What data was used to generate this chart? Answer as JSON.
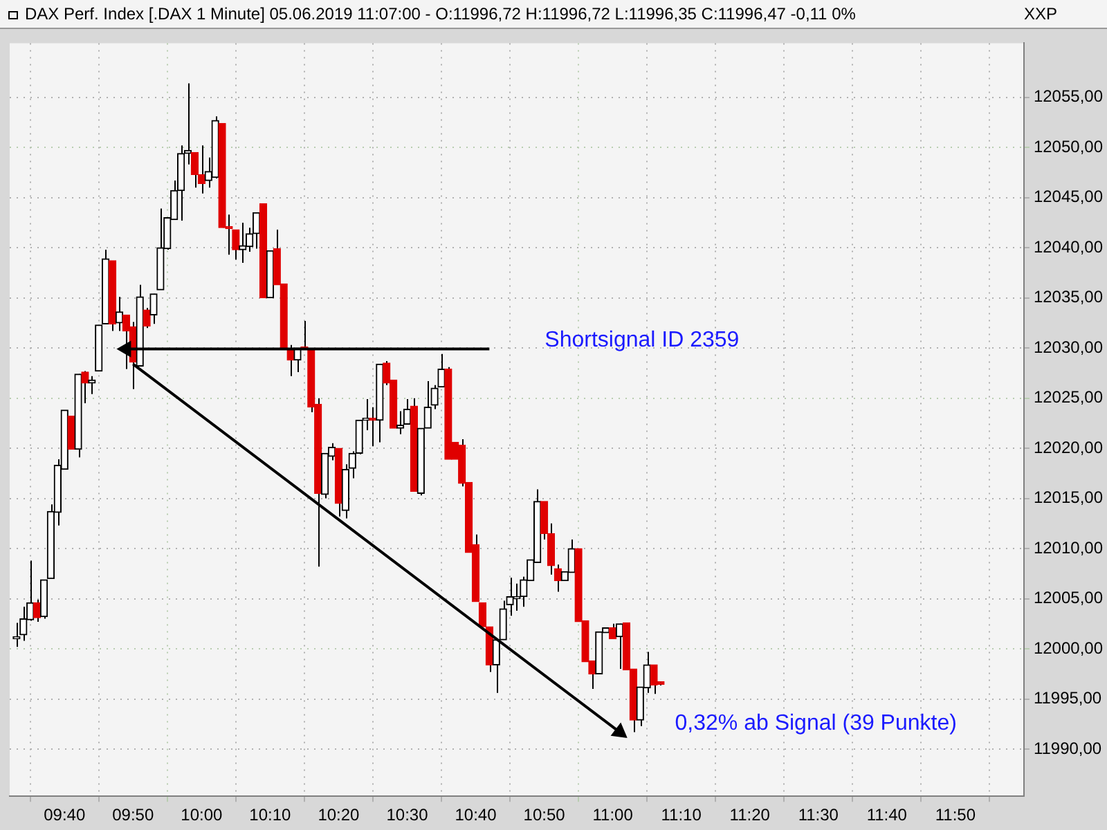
{
  "chart_data": {
    "type": "candlestick",
    "title": "DAX Perf. Index [.DAX  1 Minute] 05.06.2019 11:07:00 - O:11996,72 H:11996,72 L:11996,35 C:11996,47 -0,11 0%",
    "x": [
      "2019-06-05T09:33",
      "2019-06-05T09:34",
      "2019-06-05T09:35",
      "2019-06-05T09:36",
      "2019-06-05T09:37",
      "2019-06-05T09:38",
      "2019-06-05T09:39",
      "2019-06-05T09:40",
      "2019-06-05T09:41",
      "2019-06-05T09:42",
      "2019-06-05T09:43",
      "2019-06-05T09:44",
      "2019-06-05T09:45",
      "2019-06-05T09:46",
      "2019-06-05T09:47",
      "2019-06-05T09:48",
      "2019-06-05T09:49",
      "2019-06-05T09:50",
      "2019-06-05T09:51",
      "2019-06-05T09:52",
      "2019-06-05T09:53",
      "2019-06-05T09:54",
      "2019-06-05T09:55",
      "2019-06-05T09:56",
      "2019-06-05T09:57",
      "2019-06-05T09:58",
      "2019-06-05T09:59",
      "2019-06-05T10:00",
      "2019-06-05T10:01",
      "2019-06-05T10:02",
      "2019-06-05T10:03",
      "2019-06-05T10:04",
      "2019-06-05T10:05",
      "2019-06-05T10:06",
      "2019-06-05T10:07",
      "2019-06-05T10:08",
      "2019-06-05T10:09",
      "2019-06-05T10:10",
      "2019-06-05T10:11",
      "2019-06-05T10:12",
      "2019-06-05T10:13",
      "2019-06-05T10:14",
      "2019-06-05T10:15",
      "2019-06-05T10:16",
      "2019-06-05T10:17",
      "2019-06-05T10:18",
      "2019-06-05T10:19",
      "2019-06-05T10:20",
      "2019-06-05T10:21",
      "2019-06-05T10:22",
      "2019-06-05T10:23",
      "2019-06-05T10:24",
      "2019-06-05T10:25",
      "2019-06-05T10:26",
      "2019-06-05T10:27",
      "2019-06-05T10:28",
      "2019-06-05T10:29",
      "2019-06-05T10:30",
      "2019-06-05T10:31",
      "2019-06-05T10:32",
      "2019-06-05T10:33",
      "2019-06-05T10:34",
      "2019-06-05T10:35",
      "2019-06-05T10:36",
      "2019-06-05T10:37",
      "2019-06-05T10:38",
      "2019-06-05T10:39",
      "2019-06-05T10:40",
      "2019-06-05T10:41",
      "2019-06-05T10:42",
      "2019-06-05T10:43",
      "2019-06-05T10:44",
      "2019-06-05T10:45",
      "2019-06-05T10:46",
      "2019-06-05T10:47",
      "2019-06-05T10:48",
      "2019-06-05T10:49",
      "2019-06-05T10:50",
      "2019-06-05T10:51",
      "2019-06-05T10:52",
      "2019-06-05T10:53",
      "2019-06-05T10:54",
      "2019-06-05T10:55",
      "2019-06-05T10:56",
      "2019-06-05T10:57",
      "2019-06-05T10:58",
      "2019-06-05T10:59",
      "2019-06-05T11:00",
      "2019-06-05T11:01",
      "2019-06-05T11:02",
      "2019-06-05T11:03",
      "2019-06-05T11:04",
      "2019-06-05T11:05",
      "2019-06-05T11:06",
      "2019-06-05T11:07"
    ],
    "ohlc": [
      [
        12001.0,
        12002.6,
        12000.2,
        12001.2
      ],
      [
        12001.4,
        12004.2,
        12000.8,
        12003.0
      ],
      [
        12002.9,
        12008.8,
        12002.8,
        12004.6
      ],
      [
        12004.6,
        12004.9,
        12002.7,
        12003.1
      ],
      [
        12003.2,
        12006.9,
        12003.0,
        12006.9
      ],
      [
        12007.0,
        12014.4,
        12007.0,
        12013.7
      ],
      [
        12013.6,
        12018.9,
        12012.3,
        12018.3
      ],
      [
        12017.9,
        12023.8,
        12017.9,
        12023.8
      ],
      [
        12023.2,
        12023.2,
        12019.9,
        12019.9
      ],
      [
        12019.9,
        12027.4,
        12019.1,
        12027.4
      ],
      [
        12027.6,
        12027.7,
        12024.5,
        12026.5
      ],
      [
        12026.5,
        12027.2,
        12025.4,
        12026.8
      ],
      [
        12027.7,
        12032.3,
        12027.7,
        12032.3
      ],
      [
        12032.4,
        12039.8,
        12032.4,
        12038.9
      ],
      [
        12038.7,
        12038.7,
        12031.7,
        12032.4
      ],
      [
        12032.5,
        12035.1,
        12031.7,
        12033.6
      ],
      [
        12033.3,
        12033.3,
        12027.9,
        12031.7
      ],
      [
        12032.1,
        12032.6,
        12025.9,
        12028.6
      ],
      [
        12028.2,
        12036.3,
        12028.2,
        12035.1
      ],
      [
        12033.8,
        12034.0,
        12032.0,
        12032.2
      ],
      [
        12033.3,
        12035.4,
        12032.4,
        12035.4
      ],
      [
        12035.8,
        12043.9,
        12035.8,
        12040.0
      ],
      [
        12039.9,
        12043.0,
        12039.8,
        12043.0
      ],
      [
        12042.8,
        12046.7,
        12042.8,
        12045.7
      ],
      [
        12045.7,
        12050.2,
        12042.7,
        12049.4
      ],
      [
        12049.4,
        12056.4,
        12048.3,
        12049.7
      ],
      [
        12049.5,
        12049.5,
        12046.0,
        12047.3
      ],
      [
        12047.3,
        12050.2,
        12045.4,
        12046.4
      ],
      [
        12046.7,
        12049.0,
        12046.0,
        12047.6
      ],
      [
        12047.0,
        12053.1,
        12046.9,
        12052.7
      ],
      [
        12052.4,
        12052.4,
        12042.0,
        12042.0
      ],
      [
        12042.1,
        12043.3,
        12039.3,
        12041.9
      ],
      [
        12041.8,
        12041.8,
        12038.8,
        12039.8
      ],
      [
        12039.8,
        12042.5,
        12038.5,
        12040.2
      ],
      [
        12040.1,
        12042.0,
        12039.6,
        12041.4
      ],
      [
        12041.4,
        12043.5,
        12039.9,
        12043.5
      ],
      [
        12044.4,
        12044.4,
        12035.0,
        12035.0
      ],
      [
        12035.0,
        12039.7,
        12035.0,
        12039.7
      ],
      [
        12039.9,
        12041.8,
        12036.3,
        12036.3
      ],
      [
        12036.4,
        12036.4,
        12029.9,
        12029.9
      ],
      [
        12029.9,
        12030.3,
        12027.2,
        12028.8
      ],
      [
        12028.8,
        12030.0,
        12027.6,
        12030.0
      ],
      [
        12030.1,
        12032.7,
        12029.9,
        12029.9
      ],
      [
        12029.9,
        12029.9,
        12023.6,
        12024.1
      ],
      [
        12024.4,
        12025.0,
        12008.2,
        12015.5
      ],
      [
        12015.4,
        12019.5,
        12015.0,
        12019.5
      ],
      [
        12019.2,
        12020.5,
        12018.8,
        12020.1
      ],
      [
        12020.0,
        12020.0,
        12013.2,
        12014.5
      ],
      [
        12013.8,
        12018.4,
        12013.0,
        12017.9
      ],
      [
        12018.0,
        12019.7,
        12017.0,
        12019.5
      ],
      [
        12019.5,
        12022.8,
        12019.4,
        12022.8
      ],
      [
        12022.8,
        12024.9,
        12021.8,
        12023.0
      ],
      [
        12023.0,
        12024.1,
        12020.2,
        12022.8
      ],
      [
        12022.8,
        12028.4,
        12020.6,
        12028.4
      ],
      [
        12028.5,
        12028.7,
        12026.3,
        12026.5
      ],
      [
        12026.8,
        12026.8,
        12022.0,
        12022.0
      ],
      [
        12022.0,
        12023.7,
        12021.4,
        12022.3
      ],
      [
        12022.4,
        12024.9,
        12022.4,
        12023.9
      ],
      [
        12024.2,
        12025.0,
        12015.7,
        12015.7
      ],
      [
        12015.5,
        12022.0,
        12015.3,
        12022.0
      ],
      [
        12022.0,
        12026.7,
        12022.0,
        12024.1
      ],
      [
        12024.3,
        12026.3,
        12023.9,
        12026.0
      ],
      [
        12026.1,
        12029.4,
        12026.1,
        12027.9
      ],
      [
        12027.9,
        12028.1,
        12018.9,
        12018.9
      ],
      [
        12020.6,
        12020.6,
        12018.9,
        12018.9
      ],
      [
        12020.3,
        12020.9,
        12016.2,
        12016.5
      ],
      [
        12016.6,
        12016.6,
        12009.6,
        12009.6
      ],
      [
        12010.4,
        12011.4,
        12004.7,
        12004.7
      ],
      [
        12004.6,
        12004.6,
        12002.2,
        12002.2
      ],
      [
        12002.2,
        12002.2,
        11997.7,
        11998.4
      ],
      [
        11998.4,
        12000.9,
        11995.6,
        12000.9
      ],
      [
        12000.9,
        12004.8,
        12000.9,
        12004.0
      ],
      [
        12004.4,
        12007.1,
        12003.3,
        12005.2
      ],
      [
        12005.0,
        12006.5,
        12003.8,
        12005.2
      ],
      [
        12005.2,
        12007.2,
        12004.2,
        12006.9
      ],
      [
        12006.8,
        12008.9,
        12006.8,
        12008.9
      ],
      [
        12008.6,
        12015.9,
        12008.6,
        12014.7
      ],
      [
        12014.7,
        12014.7,
        12010.9,
        12011.5
      ],
      [
        12011.5,
        12012.5,
        12007.4,
        12008.3
      ],
      [
        12008.0,
        12008.4,
        12005.7,
        12006.8
      ],
      [
        12006.8,
        12007.7,
        12006.8,
        12007.7
      ],
      [
        12007.6,
        12010.9,
        12007.6,
        12010.0
      ],
      [
        12010.0,
        12010.0,
        12002.7,
        12002.7
      ],
      [
        12002.8,
        12002.8,
        11998.7,
        11998.7
      ],
      [
        11998.8,
        11998.8,
        11996.0,
        11997.5
      ],
      [
        11997.5,
        12001.7,
        11997.5,
        12001.7
      ],
      [
        12001.6,
        12002.1,
        12001.6,
        12002.1
      ],
      [
        12002.1,
        12002.5,
        12001.0,
        12001.0
      ],
      [
        12001.2,
        12002.5,
        11998.0,
        12002.5
      ],
      [
        12002.6,
        12002.6,
        11997.9,
        11997.9
      ],
      [
        11998.0,
        11998.0,
        11991.7,
        11992.9
      ],
      [
        11992.9,
        11996.2,
        11992.3,
        11996.2
      ],
      [
        11996.1,
        11999.7,
        11995.6,
        11998.4
      ],
      [
        11998.4,
        11998.4,
        11995.5,
        11996.4
      ],
      [
        11996.72,
        11996.72,
        11996.35,
        11996.47
      ]
    ],
    "colors": [
      "#000000",
      "#000000",
      "#000000",
      "#e00000",
      "#000000",
      "#000000",
      "#000000",
      "#000000",
      "#e00000",
      "#000000",
      "#e00000",
      "#000000",
      "#000000",
      "#000000",
      "#e00000",
      "#000000",
      "#e00000",
      "#e00000",
      "#000000",
      "#e00000",
      "#000000",
      "#000000",
      "#000000",
      "#000000",
      "#000000",
      "#000000",
      "#e00000",
      "#e00000",
      "#000000",
      "#000000",
      "#e00000",
      "#e00000",
      "#e00000",
      "#000000",
      "#000000",
      "#000000",
      "#e00000",
      "#000000",
      "#e00000",
      "#e00000",
      "#e00000",
      "#000000",
      "#e00000",
      "#e00000",
      "#e00000",
      "#000000",
      "#000000",
      "#e00000",
      "#000000",
      "#000000",
      "#000000",
      "#000000",
      "#e00000",
      "#000000",
      "#e00000",
      "#e00000",
      "#000000",
      "#000000",
      "#e00000",
      "#000000",
      "#000000",
      "#000000",
      "#000000",
      "#e00000",
      "#e00000",
      "#e00000",
      "#e00000",
      "#e00000",
      "#e00000",
      "#e00000",
      "#000000",
      "#000000",
      "#000000",
      "#000000",
      "#000000",
      "#000000",
      "#000000",
      "#e00000",
      "#e00000",
      "#e00000",
      "#000000",
      "#000000",
      "#e00000",
      "#e00000",
      "#e00000",
      "#000000",
      "#000000",
      "#e00000",
      "#000000",
      "#e00000",
      "#e00000",
      "#000000",
      "#000000",
      "#e00000",
      "#e00000"
    ],
    "series": [
      {
        "type": "line",
        "color": "#000000",
        "x": [
          "2019-06-05T10:42",
          "2019-06-05T09:49"
        ],
        "values": [
          12029.9,
          12029.9
        ]
      },
      {
        "type": "line",
        "color": "#000000",
        "x": [
          "2019-06-05T09:50",
          "2019-06-05T11:01"
        ],
        "values": [
          12028.4,
          11991.7
        ]
      }
    ],
    "annotations": [
      {
        "text": "Shortsignal ID 2359",
        "x": "2019-06-05T10:42",
        "y": 12029.9
      },
      {
        "text": "0,32% ab Signal (39 Punkte)",
        "x": "2019-06-05T11:01",
        "y": 11991.7
      },
      "XXP"
    ],
    "xlim": [
      "2019-06-05T09:32",
      "2019-06-05T12:00"
    ],
    "xticks": [
      {
        "value": "2019-06-05T09:40",
        "label": "09:40"
      },
      {
        "value": "2019-06-05T09:50",
        "label": "09:50"
      },
      {
        "value": "2019-06-05T10:00",
        "label": "10:00"
      },
      {
        "value": "2019-06-05T10:10",
        "label": "10:10"
      },
      {
        "value": "2019-06-05T10:20",
        "label": "10:20"
      },
      {
        "value": "2019-06-05T10:30",
        "label": "10:30"
      },
      {
        "value": "2019-06-05T10:40",
        "label": "10:40"
      },
      {
        "value": "2019-06-05T10:50",
        "label": "10:50"
      },
      {
        "value": "2019-06-05T11:00",
        "label": "11:00"
      },
      {
        "value": "2019-06-05T11:10",
        "label": "11:10"
      },
      {
        "value": "2019-06-05T11:20",
        "label": "11:20"
      },
      {
        "value": "2019-06-05T11:30",
        "label": "11:30"
      },
      {
        "value": "2019-06-05T11:40",
        "label": "11:40"
      },
      {
        "value": "2019-06-05T11:50",
        "label": "11:50"
      }
    ],
    "ylim": [
      11985.3,
      12060.4
    ],
    "yticks": [
      {
        "value": 11990,
        "label": "11990,00"
      },
      {
        "value": 11995,
        "label": "11995,00"
      },
      {
        "value": 12000,
        "label": "12000,00"
      },
      {
        "value": 12005,
        "label": "12005,00"
      },
      {
        "value": 12010,
        "label": "12010,00"
      },
      {
        "value": 12015,
        "label": "12015,00"
      },
      {
        "value": 12020,
        "label": "12020,00"
      },
      {
        "value": 12025,
        "label": "12025,00"
      },
      {
        "value": 12030,
        "label": "12030,00"
      },
      {
        "value": 12035,
        "label": "12035,00"
      },
      {
        "value": 12040,
        "label": "12040,00"
      },
      {
        "value": 12045,
        "label": "12045,00"
      },
      {
        "value": 12050,
        "label": "12050,00"
      },
      {
        "value": 12055,
        "label": "12055,00"
      }
    ],
    "grid": true,
    "legend": false
  }
}
